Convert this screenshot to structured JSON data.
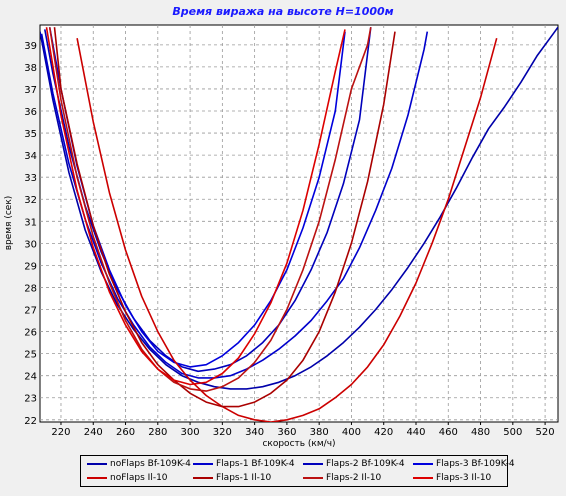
{
  "chart_data": {
    "type": "line",
    "title": "Время виража на высоте H=1000м",
    "xlabel": "скорость (км/ч)",
    "ylabel": "время (сек)",
    "xlim": [
      207,
      528
    ],
    "ylim": [
      21.9,
      39.9
    ],
    "x_ticks": [
      220,
      240,
      260,
      280,
      300,
      320,
      340,
      360,
      380,
      400,
      420,
      440,
      460,
      480,
      500,
      520
    ],
    "y_ticks": [
      22,
      23,
      24,
      25,
      26,
      27,
      28,
      29,
      30,
      31,
      32,
      33,
      34,
      35,
      36,
      37,
      38,
      39
    ],
    "grid": true,
    "legend_position": "bottom",
    "series": [
      {
        "name": "noFlaps Bf-109K-4",
        "color": "#0000aa",
        "x": [
          207,
          215,
          225,
          235,
          245,
          255,
          265,
          275,
          285,
          295,
          305,
          315,
          325,
          335,
          345,
          355,
          365,
          375,
          385,
          395,
          405,
          415,
          425,
          435,
          445,
          455,
          465,
          475,
          485,
          495,
          505,
          515,
          525,
          528
        ],
        "y": [
          39.6,
          36.5,
          33.2,
          30.6,
          28.7,
          27.2,
          26.1,
          25.2,
          24.5,
          24.0,
          23.7,
          23.5,
          23.4,
          23.4,
          23.5,
          23.7,
          24.0,
          24.4,
          24.9,
          25.5,
          26.2,
          27.0,
          27.9,
          28.9,
          30.0,
          31.2,
          32.5,
          33.9,
          35.2,
          36.2,
          37.3,
          38.5,
          39.5,
          39.8
        ]
      },
      {
        "name": "Flaps-1 Bf-109K-4",
        "color": "#0000cc",
        "x": [
          208,
          215,
          225,
          235,
          245,
          255,
          265,
          275,
          285,
          295,
          305,
          315,
          325,
          335,
          345,
          355,
          365,
          375,
          385,
          395,
          405,
          415,
          425,
          435,
          445,
          447
        ],
        "y": [
          39.5,
          36.8,
          33.6,
          31.1,
          29.1,
          27.5,
          26.3,
          25.3,
          24.6,
          24.1,
          23.9,
          23.9,
          24.0,
          24.3,
          24.7,
          25.2,
          25.8,
          26.5,
          27.4,
          28.4,
          29.8,
          31.5,
          33.4,
          35.8,
          38.8,
          39.6
        ]
      },
      {
        "name": "Flaps-2 Bf-109K-4",
        "color": "#0000bb",
        "x": [
          210,
          215,
          225,
          235,
          245,
          255,
          265,
          275,
          285,
          295,
          305,
          315,
          325,
          335,
          345,
          355,
          365,
          375,
          385,
          395,
          405,
          412
        ],
        "y": [
          39.7,
          37.7,
          34.4,
          31.7,
          29.6,
          27.9,
          26.6,
          25.6,
          24.9,
          24.4,
          24.2,
          24.3,
          24.5,
          24.9,
          25.5,
          26.3,
          27.4,
          28.8,
          30.5,
          32.7,
          35.6,
          39.8
        ]
      },
      {
        "name": "Flaps-3 Bf-109K-4",
        "color": "#0000dd",
        "x": [
          213,
          220,
          230,
          240,
          250,
          260,
          270,
          280,
          290,
          300,
          310,
          320,
          330,
          340,
          350,
          360,
          370,
          380,
          390,
          396
        ],
        "y": [
          39.8,
          37.0,
          33.5,
          30.8,
          28.8,
          27.2,
          26.0,
          25.1,
          24.6,
          24.4,
          24.5,
          24.9,
          25.5,
          26.3,
          27.4,
          28.8,
          30.7,
          33.0,
          36.0,
          39.6
        ]
      },
      {
        "name": "noFlaps Il-10",
        "color": "#cc0000",
        "x": [
          230,
          240,
          250,
          260,
          270,
          280,
          290,
          300,
          310,
          320,
          330,
          340,
          350,
          360,
          370,
          380,
          390,
          400,
          410,
          420,
          430,
          440,
          450,
          460,
          470,
          480,
          490
        ],
        "y": [
          39.3,
          35.5,
          32.3,
          29.7,
          27.6,
          26.0,
          24.7,
          23.8,
          23.1,
          22.6,
          22.2,
          22.0,
          21.9,
          22.0,
          22.2,
          22.5,
          23.0,
          23.6,
          24.4,
          25.4,
          26.7,
          28.2,
          30.0,
          32.0,
          34.3,
          36.6,
          39.3
        ]
      },
      {
        "name": "Flaps-1 Il-10",
        "color": "#aa0000",
        "x": [
          216,
          220,
          230,
          240,
          250,
          260,
          270,
          280,
          290,
          300,
          310,
          320,
          330,
          340,
          350,
          360,
          370,
          380,
          390,
          400,
          410,
          420,
          427
        ],
        "y": [
          39.8,
          37.0,
          33.6,
          30.8,
          28.6,
          26.9,
          25.5,
          24.5,
          23.8,
          23.2,
          22.8,
          22.6,
          22.6,
          22.8,
          23.2,
          23.8,
          24.7,
          26.0,
          27.8,
          30.0,
          32.8,
          36.3,
          39.6
        ]
      },
      {
        "name": "Flaps-2 Il-10",
        "color": "#bb1111",
        "x": [
          213,
          220,
          230,
          240,
          250,
          260,
          270,
          280,
          290,
          300,
          310,
          320,
          330,
          340,
          350,
          360,
          370,
          380,
          390,
          400,
          410,
          412
        ],
        "y": [
          39.8,
          36.5,
          33.0,
          30.3,
          28.2,
          26.5,
          25.2,
          24.3,
          23.7,
          23.4,
          23.3,
          23.5,
          23.9,
          24.6,
          25.6,
          27.0,
          28.8,
          31.0,
          33.8,
          37.0,
          39.0,
          39.8
        ]
      },
      {
        "name": "Flaps-3 Il-10",
        "color": "#dd0000",
        "x": [
          211,
          220,
          230,
          240,
          250,
          260,
          270,
          280,
          290,
          300,
          310,
          320,
          330,
          340,
          350,
          360,
          370,
          380,
          390,
          396
        ],
        "y": [
          39.8,
          35.8,
          32.4,
          29.8,
          27.8,
          26.3,
          25.1,
          24.3,
          23.8,
          23.6,
          23.7,
          24.1,
          24.8,
          25.9,
          27.3,
          29.1,
          31.5,
          34.5,
          37.8,
          39.7
        ]
      }
    ]
  }
}
